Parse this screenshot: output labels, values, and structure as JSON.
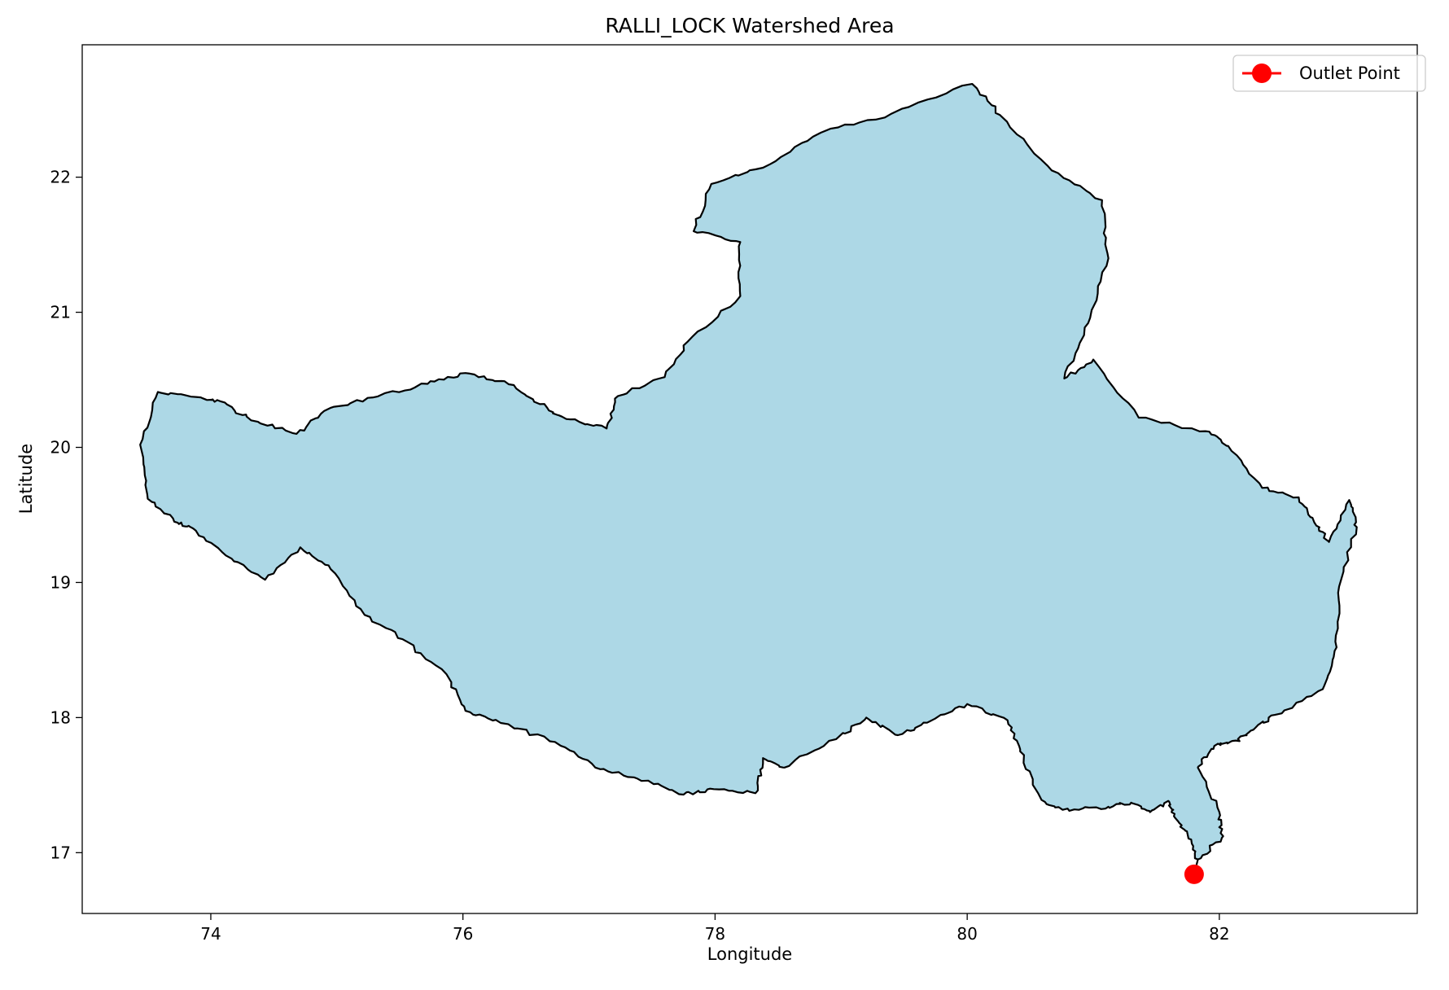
{
  "chart_data": {
    "type": "map",
    "title": "RALLI_LOCK Watershed Area",
    "xlabel": "Longitude",
    "ylabel": "Latitude",
    "xlim": [
      72.98,
      83.57
    ],
    "ylim": [
      16.55,
      22.98
    ],
    "xticks": [
      74,
      76,
      78,
      80,
      82
    ],
    "yticks": [
      17,
      18,
      19,
      20,
      21,
      22
    ],
    "grid": false,
    "legend_position": "top-right",
    "colors": {
      "fill": "#add8e6",
      "boundary": "#000000",
      "outlet": "#ff0000"
    },
    "series": [
      {
        "name": "Outlet Point",
        "type": "marker",
        "x": [
          81.8
        ],
        "y": [
          16.84
        ]
      }
    ],
    "boundary": [
      [
        81.83,
        16.95
      ],
      [
        81.75,
        17.13
      ],
      [
        81.64,
        17.27
      ],
      [
        81.6,
        17.38
      ],
      [
        81.45,
        17.3
      ],
      [
        81.3,
        17.37
      ],
      [
        81.12,
        17.34
      ],
      [
        80.81,
        17.31
      ],
      [
        80.59,
        17.39
      ],
      [
        80.42,
        17.75
      ],
      [
        80.32,
        17.98
      ],
      [
        80.0,
        18.1
      ],
      [
        79.72,
        17.98
      ],
      [
        79.45,
        17.87
      ],
      [
        79.2,
        18.0
      ],
      [
        78.96,
        17.84
      ],
      [
        78.55,
        17.63
      ],
      [
        78.38,
        17.7
      ],
      [
        78.32,
        17.44
      ],
      [
        77.99,
        17.47
      ],
      [
        77.75,
        17.43
      ],
      [
        77.38,
        17.55
      ],
      [
        77.05,
        17.63
      ],
      [
        76.73,
        17.82
      ],
      [
        76.3,
        17.96
      ],
      [
        76.02,
        18.05
      ],
      [
        75.87,
        18.32
      ],
      [
        75.52,
        18.58
      ],
      [
        75.22,
        18.76
      ],
      [
        74.95,
        19.1
      ],
      [
        74.71,
        19.26
      ],
      [
        74.43,
        19.02
      ],
      [
        74.12,
        19.2
      ],
      [
        73.86,
        19.4
      ],
      [
        73.71,
        19.45
      ],
      [
        73.5,
        19.62
      ],
      [
        73.44,
        20.02
      ],
      [
        73.58,
        20.41
      ],
      [
        73.92,
        20.37
      ],
      [
        74.08,
        20.34
      ],
      [
        74.32,
        20.2
      ],
      [
        74.68,
        20.1
      ],
      [
        74.9,
        20.27
      ],
      [
        75.29,
        20.37
      ],
      [
        75.72,
        20.47
      ],
      [
        76.02,
        20.55
      ],
      [
        76.33,
        20.49
      ],
      [
        76.61,
        20.32
      ],
      [
        76.82,
        20.21
      ],
      [
        77.14,
        20.14
      ],
      [
        77.23,
        20.38
      ],
      [
        77.6,
        20.52
      ],
      [
        77.78,
        20.78
      ],
      [
        78.2,
        21.12
      ],
      [
        78.2,
        21.52
      ],
      [
        77.83,
        21.6
      ],
      [
        77.97,
        21.95
      ],
      [
        78.38,
        22.07
      ],
      [
        78.84,
        22.33
      ],
      [
        79.4,
        22.47
      ],
      [
        80.04,
        22.69
      ],
      [
        80.26,
        22.46
      ],
      [
        80.67,
        22.05
      ],
      [
        81.07,
        21.83
      ],
      [
        81.12,
        21.4
      ],
      [
        80.96,
        20.92
      ],
      [
        80.77,
        20.51
      ],
      [
        81.0,
        20.65
      ],
      [
        81.36,
        20.22
      ],
      [
        81.89,
        20.12
      ],
      [
        82.07,
        20.01
      ],
      [
        82.34,
        19.7
      ],
      [
        82.63,
        19.63
      ],
      [
        82.77,
        19.42
      ],
      [
        82.87,
        19.3
      ],
      [
        83.03,
        19.61
      ],
      [
        83.09,
        19.41
      ],
      [
        82.95,
        18.97
      ],
      [
        82.93,
        18.52
      ],
      [
        82.82,
        18.21
      ],
      [
        82.44,
        18.02
      ],
      [
        82.27,
        17.91
      ],
      [
        82.13,
        17.83
      ],
      [
        81.96,
        17.79
      ],
      [
        81.83,
        17.63
      ],
      [
        82.0,
        17.3
      ],
      [
        82.02,
        17.11
      ]
    ]
  }
}
